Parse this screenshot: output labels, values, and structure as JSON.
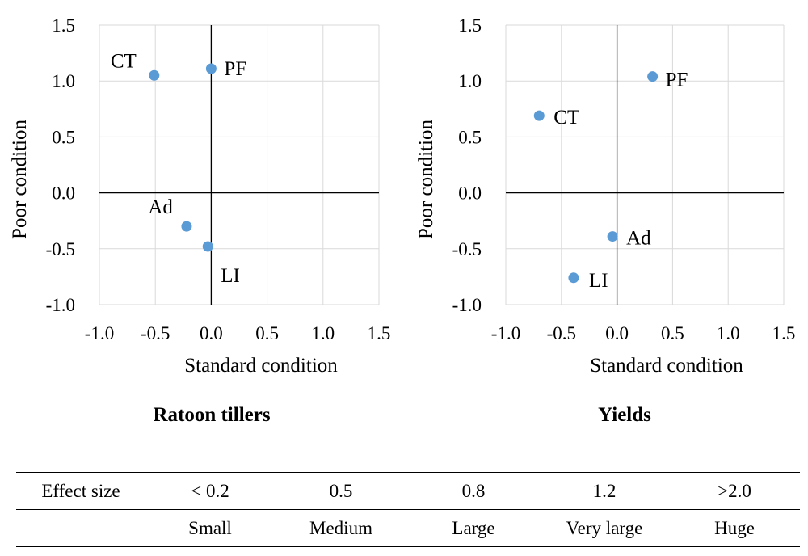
{
  "chart_data": [
    {
      "type": "scatter",
      "title": "Ratoon tillers",
      "xlabel": "Standard condition",
      "ylabel": "Poor condition",
      "xlim": [
        -1.0,
        1.5
      ],
      "ylim": [
        -1.0,
        1.5
      ],
      "xticks": [
        "-1.0",
        "-0.5",
        "0.0",
        "0.5",
        "1.0",
        "1.5"
      ],
      "yticks": [
        "-1.0",
        "-0.5",
        "0.0",
        "0.5",
        "1.0",
        "1.5"
      ],
      "grid": true,
      "marker_color": "#5B9BD5",
      "points": [
        {
          "label": "CT",
          "x": -0.51,
          "y": 1.05
        },
        {
          "label": "PF",
          "x": 0.0,
          "y": 1.11
        },
        {
          "label": "Ad",
          "x": -0.22,
          "y": -0.3
        },
        {
          "label": "LI",
          "x": -0.03,
          "y": -0.48
        }
      ]
    },
    {
      "type": "scatter",
      "title": "Yields",
      "xlabel": "Standard condition",
      "ylabel": "Poor condition",
      "xlim": [
        -1.0,
        1.5
      ],
      "ylim": [
        -1.0,
        1.5
      ],
      "xticks": [
        "-1.0",
        "-0.5",
        "0.0",
        "0.5",
        "1.0",
        "1.5"
      ],
      "yticks": [
        "-1.0",
        "-0.5",
        "0.0",
        "0.5",
        "1.0",
        "1.5"
      ],
      "grid": true,
      "marker_color": "#5B9BD5",
      "points": [
        {
          "label": "PF",
          "x": 0.32,
          "y": 1.04
        },
        {
          "label": "CT",
          "x": -0.7,
          "y": 0.69
        },
        {
          "label": "Ad",
          "x": -0.04,
          "y": -0.39
        },
        {
          "label": "LI",
          "x": -0.39,
          "y": -0.76
        }
      ]
    }
  ],
  "effect_table": {
    "header": "Effect size",
    "thresholds": [
      "< 0.2",
      "0.5",
      "0.8",
      "1.2",
      ">2.0"
    ],
    "labels": [
      "Small",
      "Medium",
      "Large",
      "Very large",
      "Huge"
    ]
  }
}
